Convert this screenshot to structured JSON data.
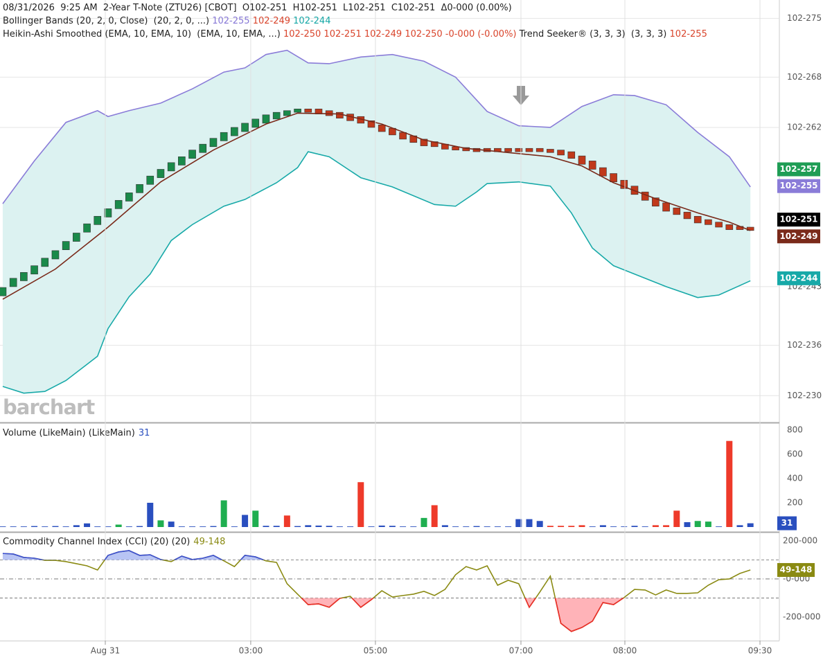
{
  "chart_data": [
    {
      "type": "candlestick",
      "header_rows": [
        [
          {
            "text": "08/31/2026  9:25 AM  2-Year T-Note (ZTU26) [CBOT]  O102-251  H102-251  L102-251  C102-251  Δ0-000 (0.00%)",
            "color": "#222222"
          }
        ],
        [
          {
            "text": "Bollinger Bands (20, 2, 0, Close)  (20, 2, 0, ...)",
            "color": "#222222"
          },
          {
            "text": "102-255",
            "color": "#8677d6"
          },
          {
            "text": "102-249",
            "color": "#d9442b"
          },
          {
            "text": "102-244",
            "color": "#15a7a6"
          }
        ],
        [
          {
            "text": "Heikin-Ashi Smoothed (EMA, 10, EMA, 10)  (EMA, 10, EMA, ...)",
            "color": "#222222"
          },
          {
            "text": "102-250 102-251 102-249 102-250 -0-000 (-0.00%)",
            "color": "#d9442b"
          },
          {
            "text": "Trend Seeker® (3, 3, 3)  (3, 3, 3)",
            "color": "#222222"
          },
          {
            "text": "102-255",
            "color": "#d9442b"
          }
        ]
      ],
      "watermark": "barchart",
      "xlim": [
        -0.26,
        73.75
      ],
      "ylim": [
        22.68,
        27.72
      ],
      "yticks": [
        {
          "value": 27.5,
          "label": "102-275"
        },
        {
          "value": 26.8,
          "label": "102-268"
        },
        {
          "value": 26.2,
          "label": "102-262"
        },
        {
          "value": 24.3,
          "label": "102-243"
        },
        {
          "value": 23.6,
          "label": "102-236"
        },
        {
          "value": 23.0,
          "label": "102-230"
        }
      ],
      "grid": true,
      "up_color": "#1a8a4a",
      "down_color": "#c0391b",
      "open": [
        24.19,
        24.3,
        24.37,
        24.45,
        24.54,
        24.63,
        24.74,
        24.84,
        24.95,
        25.04,
        25.13,
        25.23,
        25.32,
        25.42,
        25.52,
        25.6,
        25.68,
        25.75,
        25.83,
        25.9,
        25.97,
        26.04,
        26.1,
        26.15,
        26.2,
        26.25,
        26.3,
        26.34,
        26.38,
        26.42,
        26.42,
        26.4,
        26.38,
        26.36,
        26.33,
        26.28,
        26.23,
        26.19,
        26.14,
        26.1,
        26.06,
        26.03,
        26.0,
        25.97,
        25.96,
        25.95,
        25.95,
        25.95,
        25.95,
        25.95,
        25.95,
        25.95,
        25.94,
        25.93,
        25.91,
        25.86,
        25.8,
        25.72,
        25.65,
        25.57,
        25.5,
        25.43,
        25.36,
        25.3,
        25.24,
        25.19,
        25.14,
        25.1,
        25.07,
        25.04,
        25.02,
        25.01
      ],
      "close": [
        24.29,
        24.4,
        24.47,
        24.55,
        24.64,
        24.73,
        24.84,
        24.94,
        25.05,
        25.14,
        25.23,
        25.33,
        25.42,
        25.52,
        25.62,
        25.7,
        25.78,
        25.85,
        25.93,
        26.0,
        26.07,
        26.14,
        26.2,
        26.25,
        26.3,
        26.35,
        26.38,
        26.4,
        26.42,
        26.38,
        26.36,
        26.34,
        26.31,
        26.28,
        26.25,
        26.2,
        26.15,
        26.11,
        26.06,
        26.02,
        25.98,
        25.97,
        25.94,
        25.93,
        25.92,
        25.91,
        25.91,
        25.91,
        25.91,
        25.91,
        25.91,
        25.91,
        25.9,
        25.87,
        25.83,
        25.76,
        25.7,
        25.62,
        25.55,
        25.47,
        25.4,
        25.33,
        25.26,
        25.2,
        25.16,
        25.11,
        25.06,
        25.04,
        25.01,
        24.98,
        24.98,
        24.97
      ],
      "bands": {
        "fill": "#dcf2f1",
        "upper": {
          "color": "#8a7cd8",
          "x": [
            0,
            3,
            6,
            9,
            10,
            12,
            15,
            18,
            21,
            23,
            25,
            27,
            29,
            31,
            34,
            37,
            40,
            43,
            46,
            49,
            52,
            55,
            58,
            60,
            63,
            66,
            69,
            71
          ],
          "values": [
            25.29,
            25.8,
            26.26,
            26.4,
            26.33,
            26.4,
            26.49,
            26.66,
            26.86,
            26.91,
            27.07,
            27.12,
            26.97,
            26.96,
            27.04,
            27.07,
            26.99,
            26.8,
            26.39,
            26.22,
            26.2,
            26.45,
            26.59,
            26.58,
            26.47,
            26.14,
            25.85,
            25.49
          ]
        },
        "lower": {
          "color": "#17a9a8",
          "x": [
            0,
            2,
            4,
            6,
            9,
            10,
            12,
            14,
            16,
            18,
            21,
            23,
            26,
            28,
            29,
            31,
            34,
            37,
            41,
            43,
            45,
            46,
            49,
            52,
            54,
            56,
            58,
            60,
            63,
            66,
            68,
            71
          ],
          "values": [
            23.11,
            23.03,
            23.05,
            23.18,
            23.47,
            23.8,
            24.18,
            24.45,
            24.85,
            25.04,
            25.26,
            25.34,
            25.54,
            25.72,
            25.91,
            25.85,
            25.6,
            25.49,
            25.28,
            25.26,
            25.43,
            25.53,
            25.55,
            25.5,
            25.18,
            24.76,
            24.55,
            24.45,
            24.3,
            24.17,
            24.2,
            24.37
          ]
        }
      },
      "lines": [
        {
          "color": "#7a2a1a",
          "x": [
            0,
            5,
            10,
            15,
            20,
            25,
            28,
            32,
            36,
            40,
            44,
            48,
            52,
            55,
            58,
            62,
            66,
            69,
            71
          ],
          "values": [
            24.15,
            24.51,
            25.01,
            25.55,
            25.93,
            26.24,
            26.37,
            26.36,
            26.24,
            26.05,
            25.95,
            25.9,
            25.85,
            25.74,
            25.54,
            25.35,
            25.18,
            25.07,
            24.97
          ]
        }
      ],
      "price_labels": [
        {
          "value": 25.7,
          "label": "102-257",
          "color": "#1f9d55"
        },
        {
          "value": 25.5,
          "label": "102-255",
          "color": "#8a7cd8"
        },
        {
          "value": 25.1,
          "label": "102-251",
          "color": "#000000"
        },
        {
          "value": 24.9,
          "label": "102-249",
          "color": "#7a2a1a"
        },
        {
          "value": 24.4,
          "label": "102-244",
          "color": "#17a9a8"
        }
      ]
    },
    {
      "type": "bar",
      "title": "Volume (LikeMain)  (LikeMain)",
      "title_color": "#2a4fbf",
      "xlim": [
        -0.26,
        73.75
      ],
      "ylim": [
        -40,
        851
      ],
      "yticks": [
        200,
        400,
        600,
        800
      ],
      "values": [
        5,
        5,
        5,
        8,
        5,
        8,
        5,
        15,
        30,
        5,
        5,
        20,
        5,
        8,
        200,
        55,
        45,
        5,
        5,
        5,
        8,
        220,
        5,
        100,
        135,
        10,
        10,
        95,
        8,
        15,
        12,
        10,
        5,
        5,
        370,
        5,
        12,
        10,
        5,
        5,
        75,
        180,
        15,
        5,
        5,
        8,
        5,
        5,
        5,
        65,
        65,
        50,
        10,
        10,
        10,
        15,
        5,
        15,
        5,
        5,
        10,
        5,
        15,
        15,
        135,
        40,
        50,
        45,
        5,
        710,
        15,
        31
      ],
      "colors": [
        "#2a4fbf",
        "#2a4fbf",
        "#2a4fbf",
        "#2a4fbf",
        "#2a4fbf",
        "#2a4fbf",
        "#2a4fbf",
        "#2a4fbf",
        "#2a4fbf",
        "#2a4fbf",
        "#2a4fbf",
        "#1fae50",
        "#2a4fbf",
        "#2a4fbf",
        "#2a4fbf",
        "#1fae50",
        "#2a4fbf",
        "#2a4fbf",
        "#2a4fbf",
        "#2a4fbf",
        "#2a4fbf",
        "#1fae50",
        "#2a4fbf",
        "#2a4fbf",
        "#1fae50",
        "#2a4fbf",
        "#2a4fbf",
        "#ee3a2a",
        "#2a4fbf",
        "#2a4fbf",
        "#2a4fbf",
        "#2a4fbf",
        "#2a4fbf",
        "#2a4fbf",
        "#ee3a2a",
        "#2a4fbf",
        "#2a4fbf",
        "#2a4fbf",
        "#2a4fbf",
        "#2a4fbf",
        "#1fae50",
        "#ee3a2a",
        "#2a4fbf",
        "#2a4fbf",
        "#2a4fbf",
        "#2a4fbf",
        "#2a4fbf",
        "#2a4fbf",
        "#2a4fbf",
        "#2a4fbf",
        "#2a4fbf",
        "#2a4fbf",
        "#ee3a2a",
        "#ee3a2a",
        "#ee3a2a",
        "#ee3a2a",
        "#2a4fbf",
        "#2a4fbf",
        "#2a4fbf",
        "#2a4fbf",
        "#2a4fbf",
        "#2a4fbf",
        "#ee3a2a",
        "#ee3a2a",
        "#ee3a2a",
        "#2a4fbf",
        "#1fae50",
        "#1fae50",
        "#2a4fbf",
        "#ee3a2a",
        "#2a4fbf",
        "#2a4fbf"
      ]
    },
    {
      "type": "line",
      "title": "Commodity Channel Index (CCI) (20)  (20)",
      "last_label": "49-148",
      "color": "#8a8a12",
      "high_color": "#3b4fd6",
      "high_fill": "#b8c4f4",
      "low_color": "#ee2a2a",
      "low_fill": "#ffb3b8",
      "levels": [
        100,
        0,
        -100
      ],
      "xlim": [
        -0.26,
        73.75
      ],
      "ylim": [
        -324,
        240
      ],
      "yticks": [
        {
          "value": 200,
          "label": "200-000"
        },
        {
          "value": 0,
          "label": "-0-000"
        },
        {
          "value": -200,
          "label": "-200-000"
        }
      ],
      "xticks": [
        {
          "value": 9.74,
          "label": "Aug 31"
        },
        {
          "value": 23.55,
          "label": "03:00"
        },
        {
          "value": 35.39,
          "label": "05:00"
        },
        {
          "value": 49.21,
          "label": "07:00"
        },
        {
          "value": 59.08,
          "label": "08:00"
        },
        {
          "value": 71.91,
          "label": "09:30"
        }
      ],
      "values": [
        134,
        131,
        113,
        109,
        98,
        98,
        91,
        80,
        69,
        47,
        124,
        142,
        149,
        124,
        127,
        102,
        91,
        120,
        102,
        109,
        124,
        95,
        65,
        124,
        116,
        95,
        87,
        -25,
        -80,
        -135,
        -131,
        -149,
        -102,
        -91,
        -149,
        -109,
        -62,
        -95,
        -87,
        -80,
        -65,
        -87,
        -55,
        22,
        65,
        47,
        69,
        -33,
        -7,
        -25,
        -149,
        -69,
        15,
        -233,
        -276,
        -255,
        -222,
        -124,
        -135,
        -98,
        -55,
        -58,
        -84,
        -58,
        -76,
        -76,
        -73,
        -33,
        -4,
        0,
        29,
        47
      ]
    }
  ]
}
